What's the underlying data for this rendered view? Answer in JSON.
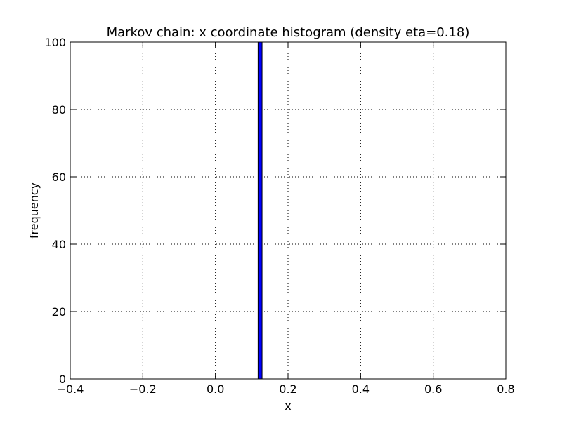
{
  "chart_data": {
    "type": "bar",
    "title": "Markov chain: x coordinate histogram (density eta=0.18)",
    "xlabel": "x",
    "ylabel": "frequency",
    "xlim": [
      -0.4,
      0.8
    ],
    "ylim": [
      0,
      100
    ],
    "xticks": [
      -0.4,
      -0.2,
      0.0,
      0.2,
      0.4,
      0.6,
      0.8
    ],
    "xtick_labels": [
      "−0.4",
      "−0.2",
      "0.0",
      "0.2",
      "0.4",
      "0.6",
      "0.8"
    ],
    "yticks": [
      0,
      20,
      40,
      60,
      80,
      100
    ],
    "ytick_labels": [
      "0",
      "20",
      "40",
      "60",
      "80",
      "100"
    ],
    "grid": true,
    "bars": [
      {
        "x_start": 0.1175,
        "x_end": 0.1285,
        "value": 100
      }
    ],
    "bar_color": "#0000ff"
  }
}
